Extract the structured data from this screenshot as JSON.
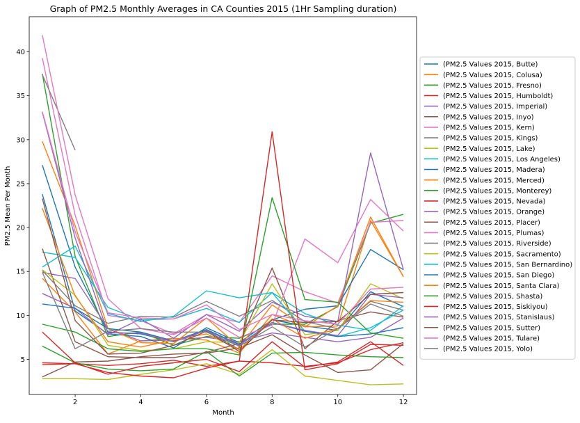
{
  "chart_data": {
    "type": "line",
    "title": "Graph of PM2.5 Monthly Averages in CA Counties 2015 (1Hr Sampling duration)",
    "xlabel": "Month",
    "ylabel": "PM2.5 Mean Per Month",
    "xlim": [
      0.6,
      12.4
    ],
    "ylim": [
      1.0,
      44.0
    ],
    "xticks": [
      2,
      4,
      6,
      8,
      10,
      12
    ],
    "yticks": [
      5,
      10,
      15,
      20,
      25,
      30,
      35,
      40
    ],
    "grid": false,
    "legend_position": "right",
    "x": [
      1,
      2,
      3,
      4,
      5,
      6,
      7,
      8,
      9,
      10,
      11,
      12
    ],
    "series": [
      {
        "name": "(PM2.5 Values 2015, Butte)",
        "color": "#1f77b4",
        "values": [
          27.1,
          15.5,
          8.1,
          7.9,
          7.0,
          8.3,
          6.1,
          9.5,
          8.8,
          8.3,
          12.7,
          11.0
        ]
      },
      {
        "name": "(PM2.5 Values 2015, Colusa)",
        "color": "#ff7f0e",
        "values": [
          14.2,
          10.4,
          5.6,
          7.1,
          7.4,
          7.2,
          5.7,
          10.1,
          8.7,
          8.8,
          20.8,
          14.4
        ]
      },
      {
        "name": "(PM2.5 Values 2015, Fresno)",
        "color": "#2ca02c",
        "values": [
          37.5,
          16.7,
          7.6,
          8.1,
          6.6,
          7.6,
          7.4,
          9.0,
          9.0,
          11.0,
          20.5,
          21.5
        ]
      },
      {
        "name": "(PM2.5 Values 2015, Humboldt)",
        "color": "#d62728",
        "values": [
          4.4,
          4.5,
          4.3,
          4.5,
          4.9,
          4.2,
          4.8,
          4.6,
          4.2,
          4.6,
          6.1,
          6.9
        ]
      },
      {
        "name": "(PM2.5 Values 2015, Imperial)",
        "color": "#9467bd",
        "values": [
          14.9,
          14.2,
          8.5,
          7.1,
          7.2,
          7.5,
          7.0,
          8.0,
          7.5,
          7.0,
          7.5,
          9.7
        ]
      },
      {
        "name": "(PM2.5 Values 2015, Inyo)",
        "color": "#8c564b",
        "values": [
          3.0,
          4.7,
          4.8,
          5.3,
          5.6,
          5.7,
          6.3,
          7.8,
          5.5,
          3.5,
          3.8,
          6.8
        ]
      },
      {
        "name": "(PM2.5 Values 2015, Kern)",
        "color": "#e377c2",
        "values": [
          39.3,
          21.4,
          10.0,
          9.4,
          7.9,
          10.1,
          9.2,
          14.5,
          12.7,
          11.4,
          20.6,
          20.8
        ]
      },
      {
        "name": "(PM2.5 Values 2015, Kings)",
        "color": "#7f7f7f",
        "values": [
          37.4,
          28.8,
          null,
          null,
          null,
          null,
          null,
          null,
          null,
          null,
          null,
          null
        ]
      },
      {
        "name": "(PM2.5 Values 2015, Lake)",
        "color": "#bcbd22",
        "values": [
          2.8,
          2.8,
          2.7,
          3.3,
          3.8,
          4.5,
          3.3,
          6.1,
          3.1,
          2.6,
          2.1,
          2.2
        ]
      },
      {
        "name": "(PM2.5 Values 2015, Los Angeles)",
        "color": "#17becf",
        "values": [
          17.2,
          16.6,
          10.9,
          9.5,
          9.6,
          10.8,
          9.2,
          12.6,
          10.2,
          8.9,
          8.3,
          11.1
        ]
      },
      {
        "name": "(PM2.5 Values 2015, Madera)",
        "color": "#1f77b4",
        "values": [
          23.8,
          10.5,
          7.9,
          7.6,
          6.3,
          8.6,
          6.9,
          9.5,
          10.7,
          11.1,
          17.5,
          15.2
        ]
      },
      {
        "name": "(PM2.5 Values 2015, Merced)",
        "color": "#ff7f0e",
        "values": [
          29.8,
          20.2,
          8.5,
          6.9,
          6.8,
          9.7,
          6.4,
          11.2,
          8.7,
          11.1,
          21.2,
          14.4
        ]
      },
      {
        "name": "(PM2.5 Values 2015, Monterey)",
        "color": "#2ca02c",
        "values": [
          6.5,
          4.6,
          3.9,
          3.7,
          3.9,
          5.9,
          3.1,
          5.7,
          5.8,
          5.5,
          5.3,
          5.2
        ]
      },
      {
        "name": "(PM2.5 Values 2015, Nevada)",
        "color": "#d62728",
        "values": [
          8.1,
          4.6,
          3.3,
          4.2,
          4.6,
          5.0,
          3.6,
          7.0,
          4.1,
          4.7,
          7.0,
          4.3
        ]
      },
      {
        "name": "(PM2.5 Values 2015, Orange)",
        "color": "#9467bd",
        "values": [
          12.5,
          10.8,
          7.8,
          9.6,
          7.4,
          10.1,
          8.2,
          11.5,
          9.9,
          9.3,
          28.5,
          15.2
        ]
      },
      {
        "name": "(PM2.5 Values 2015, Placer)",
        "color": "#8c564b",
        "values": [
          17.6,
          7.0,
          5.3,
          5.2,
          5.2,
          5.8,
          6.8,
          15.4,
          6.2,
          9.4,
          10.4,
          9.8
        ]
      },
      {
        "name": "(PM2.5 Values 2015, Plumas)",
        "color": "#e377c2",
        "values": [
          41.9,
          23.7,
          11.9,
          8.5,
          7.8,
          9.7,
          7.5,
          8.9,
          18.7,
          16.0,
          23.2,
          19.6
        ]
      },
      {
        "name": "(PM2.5 Values 2015, Riverside)",
        "color": "#7f7f7f",
        "values": [
          15.1,
          11.1,
          9.1,
          9.9,
          9.8,
          11.6,
          9.9,
          11.7,
          9.3,
          8.5,
          11.6,
          10.6
        ]
      },
      {
        "name": "(PM2.5 Values 2015, Sacramento)",
        "color": "#bcbd22",
        "values": [
          15.2,
          12.3,
          6.6,
          6.0,
          6.2,
          7.0,
          6.9,
          13.6,
          7.8,
          8.3,
          13.6,
          11.9
        ]
      },
      {
        "name": "(PM2.5 Values 2015, San Bernardino)",
        "color": "#17becf",
        "values": [
          15.5,
          17.9,
          10.2,
          9.3,
          9.9,
          12.8,
          12.0,
          12.6,
          8.2,
          7.6,
          8.6,
          10.6
        ]
      },
      {
        "name": "(PM2.5 Values 2015, San Diego)",
        "color": "#1f77b4",
        "values": [
          11.3,
          10.8,
          8.5,
          8.1,
          7.1,
          8.4,
          6.7,
          9.2,
          8.2,
          7.6,
          7.9,
          8.6
        ]
      },
      {
        "name": "(PM2.5 Values 2015, Santa Clara)",
        "color": "#ff7f0e",
        "values": [
          22.2,
          12.2,
          7.0,
          6.4,
          7.2,
          7.9,
          6.1,
          9.6,
          7.4,
          8.5,
          11.7,
          11.5
        ]
      },
      {
        "name": "(PM2.5 Values 2015, Shasta)",
        "color": "#2ca02c",
        "values": [
          9.0,
          8.1,
          6.2,
          5.9,
          6.2,
          6.2,
          5.5,
          23.4,
          11.8,
          11.5,
          8.0,
          7.4
        ]
      },
      {
        "name": "(PM2.5 Values 2015, Siskiyou)",
        "color": "#d62728",
        "values": [
          4.6,
          4.5,
          3.5,
          3.1,
          2.9,
          4.0,
          4.8,
          30.9,
          3.8,
          4.5,
          6.7,
          6.6
        ]
      },
      {
        "name": "(PM2.5 Values 2015, Stanislaus)",
        "color": "#9467bd",
        "values": [
          33.1,
          18.8,
          8.0,
          8.0,
          7.0,
          8.3,
          6.6,
          9.2,
          8.3,
          7.7,
          12.4,
          12.0
        ]
      },
      {
        "name": "(PM2.5 Values 2015, Sutter)",
        "color": "#8c564b",
        "values": [
          23.3,
          9.4,
          5.6,
          5.7,
          6.6,
          8.2,
          5.9,
          9.5,
          9.2,
          9.3,
          12.4,
          12.6
        ]
      },
      {
        "name": "(PM2.5 Values 2015, Tulare)",
        "color": "#e377c2",
        "values": [
          33.2,
          19.5,
          10.3,
          9.7,
          9.6,
          11.2,
          8.4,
          10.1,
          9.4,
          9.0,
          13.0,
          13.2
        ]
      },
      {
        "name": "(PM2.5 Values 2015, Yolo)",
        "color": "#7f7f7f",
        "values": [
          14.9,
          6.2,
          8.2,
          8.5,
          8.1,
          8.1,
          6.5,
          8.7,
          6.4,
          8.5,
          11.3,
          9.9
        ]
      }
    ]
  }
}
